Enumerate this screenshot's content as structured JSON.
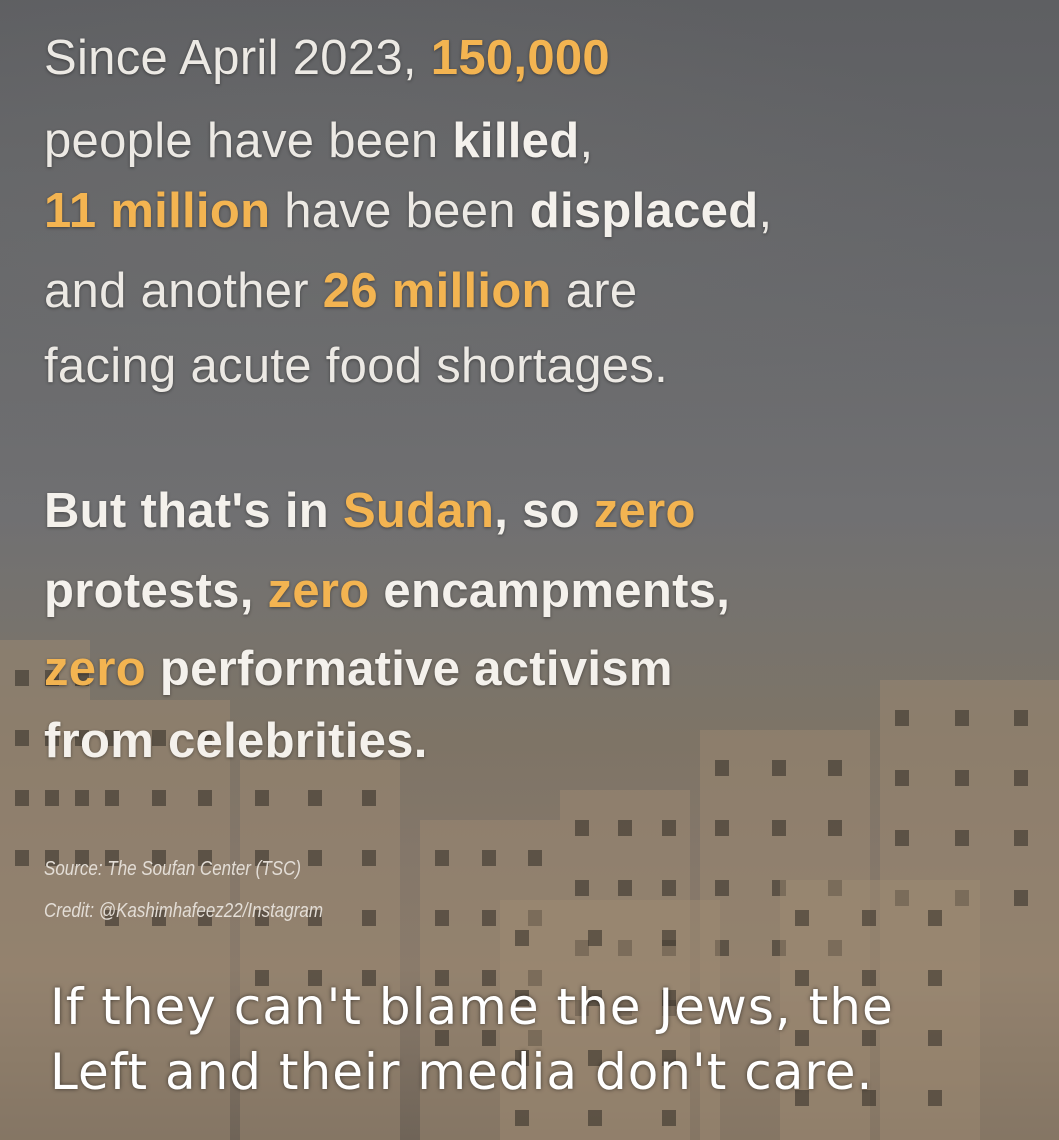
{
  "paragraph1": [
    [
      {
        "t": "Since April 2023, ",
        "s": "n"
      },
      {
        "t": "150,000",
        "s": "hl"
      }
    ],
    [
      {
        "t": "people have been ",
        "s": "n"
      },
      {
        "t": "killed",
        "s": "bold"
      },
      {
        "t": ",",
        "s": "n"
      }
    ],
    [
      {
        "t": "11 million",
        "s": "hl"
      },
      {
        "t": " have been ",
        "s": "n"
      },
      {
        "t": "displaced",
        "s": "bold"
      },
      {
        "t": ",",
        "s": "n"
      }
    ],
    [
      {
        "t": "and another ",
        "s": "n"
      },
      {
        "t": "26 million",
        "s": "hl"
      },
      {
        "t": " are",
        "s": "n"
      }
    ],
    [
      {
        "t": "facing acute food shortages.",
        "s": "n"
      }
    ]
  ],
  "paragraph2": [
    [
      {
        "t": "But that's in ",
        "s": "bold"
      },
      {
        "t": "Sudan",
        "s": "hl"
      },
      {
        "t": ", so ",
        "s": "bold"
      },
      {
        "t": "zero",
        "s": "hl"
      }
    ],
    [
      {
        "t": "protests, ",
        "s": "bold"
      },
      {
        "t": "zero",
        "s": "hl"
      },
      {
        "t": " encampments,",
        "s": "bold"
      }
    ],
    [
      {
        "t": "zero",
        "s": "hl"
      },
      {
        "t": " performative activism",
        "s": "bold"
      }
    ],
    [
      {
        "t": "from celebrities.",
        "s": "bold"
      }
    ]
  ],
  "source": "Source: The Soufan Center (TSC)",
  "credit": "Credit: @Kashimhafeez22/Instagram",
  "caption": [
    "If they can't blame the Jews, the",
    "Left and their media don't care."
  ],
  "colors": {
    "highlight": "#f3b451",
    "text": "#ece9e4",
    "caption": "#ffffff"
  }
}
